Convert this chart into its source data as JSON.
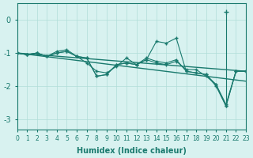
{
  "xlabel": "Humidex (Indice chaleur)",
  "ylabel": "",
  "xlim": [
    0,
    23
  ],
  "ylim": [
    -3.3,
    0.5
  ],
  "yticks": [
    0,
    -1,
    -2,
    -3
  ],
  "xticks": [
    0,
    1,
    2,
    3,
    4,
    5,
    6,
    7,
    8,
    9,
    10,
    11,
    12,
    13,
    14,
    15,
    16,
    17,
    18,
    19,
    20,
    21,
    22,
    23
  ],
  "bg_color": "#d8f2f0",
  "line_color": "#1a7a6e",
  "grid_color": "#b0ddd8",
  "series1_x": [
    0,
    1,
    2,
    3,
    4,
    5,
    6,
    7,
    8,
    9,
    10,
    11,
    12,
    13,
    14,
    15,
    16,
    17,
    18,
    19,
    20,
    21,
    22,
    23
  ],
  "series1_y": [
    -1.0,
    -1.05,
    -1.0,
    -1.1,
    -1.0,
    -0.95,
    -1.1,
    -1.15,
    -1.7,
    -1.65,
    -1.35,
    -1.3,
    -1.35,
    -1.2,
    -1.3,
    -1.35,
    -1.25,
    -1.5,
    -1.5,
    -1.7,
    -1.95,
    -2.55,
    -1.55,
    -1.55
  ],
  "series2_x": [
    0,
    1,
    2,
    3,
    4,
    5,
    6,
    7,
    8,
    9,
    10,
    11,
    12,
    13,
    14,
    15,
    16,
    17,
    18,
    19,
    20,
    21,
    22,
    23
  ],
  "series2_y": [
    -1.0,
    -1.05,
    -1.0,
    -1.1,
    -1.0,
    -0.95,
    -1.1,
    -1.15,
    -1.7,
    -1.65,
    -1.35,
    -1.3,
    -1.35,
    -1.2,
    -0.65,
    -0.7,
    -0.55,
    -1.55,
    -1.6,
    -1.65,
    -1.95,
    -2.6,
    -1.55,
    -1.55
  ],
  "series3_x": [
    0,
    1,
    2,
    3,
    4,
    5,
    6,
    7,
    8,
    9,
    10,
    11,
    12,
    13,
    14,
    15,
    16,
    17,
    18,
    19,
    20,
    21,
    22,
    23
  ],
  "series3_y": [
    -1.0,
    -1.05,
    -1.0,
    -1.1,
    -0.95,
    -0.9,
    -1.1,
    -1.3,
    -1.55,
    -1.6,
    -1.4,
    -1.15,
    -1.35,
    -1.15,
    -1.25,
    -1.3,
    -1.2,
    -1.55,
    -1.6,
    -1.65,
    -2.0,
    -2.6,
    -1.55,
    -1.55
  ],
  "line1_x": [
    0,
    23
  ],
  "line1_y": [
    -1.0,
    -1.55
  ],
  "line2_x": [
    0,
    23
  ],
  "line2_y": [
    -1.0,
    -1.85
  ],
  "spike_x": [
    21
  ],
  "spike_y": [
    0.25
  ]
}
